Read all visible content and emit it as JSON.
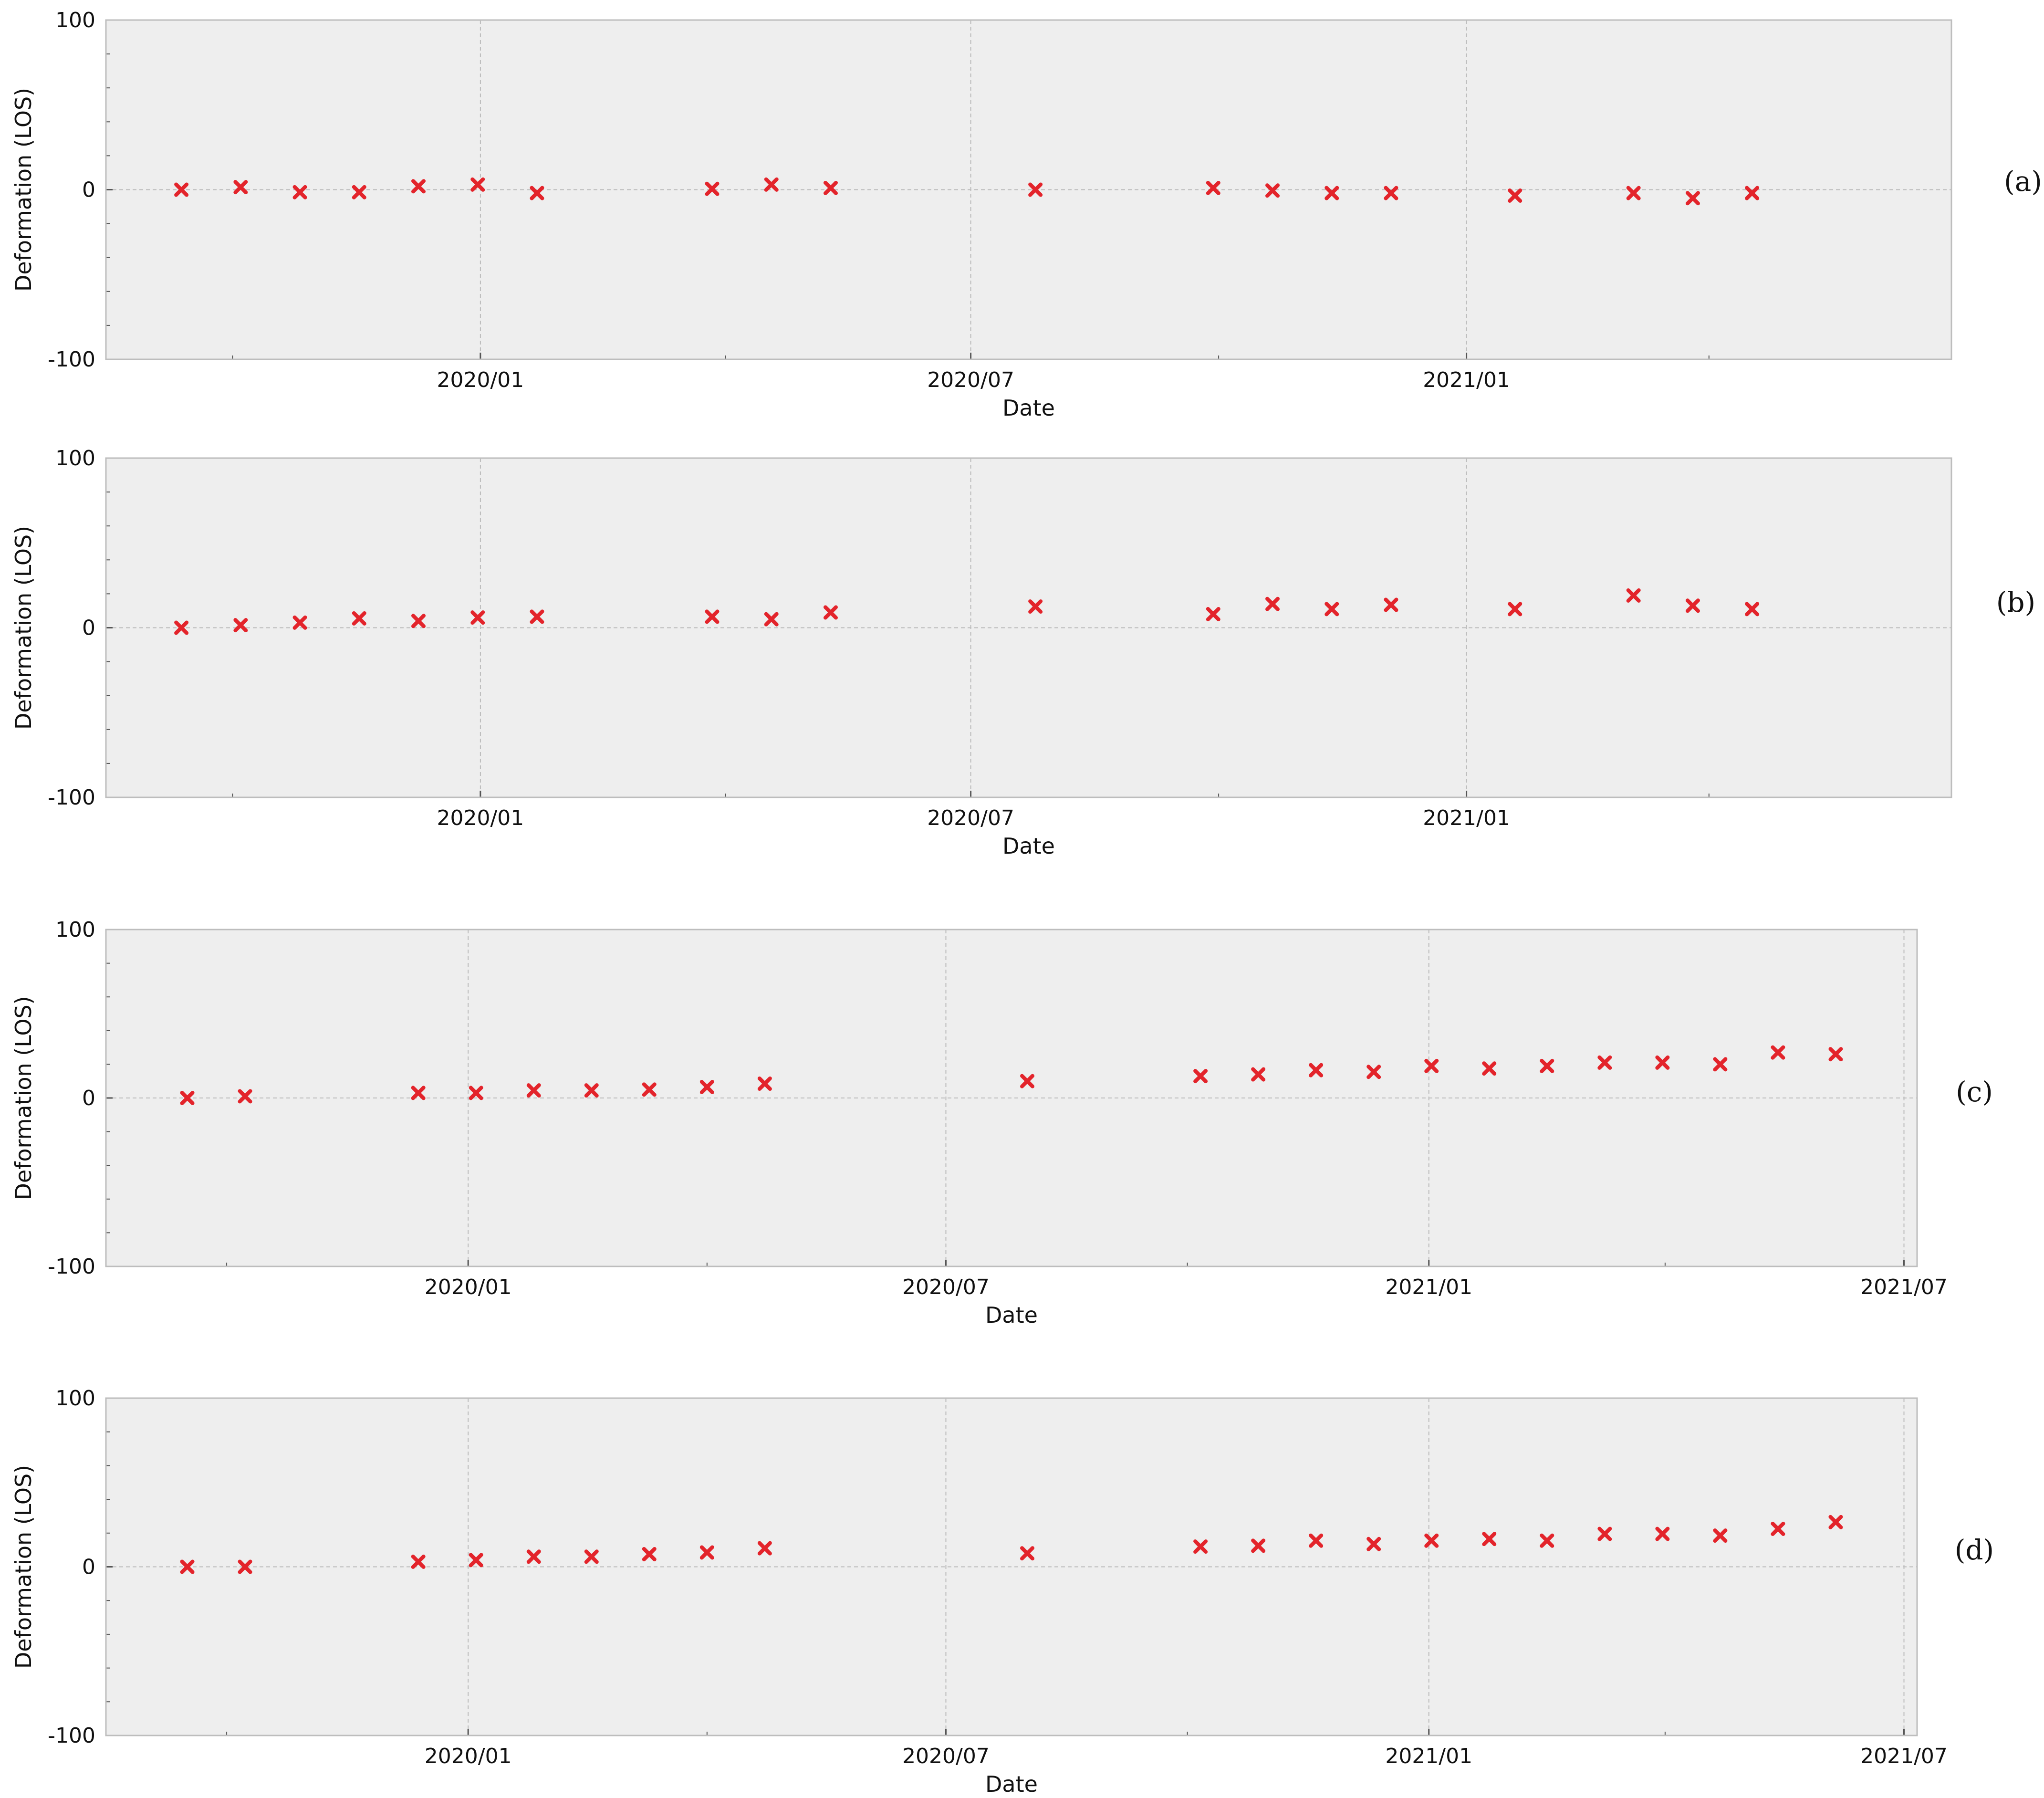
{
  "colors": {
    "plot_bg": "#eeeeee",
    "frame": "#bdbdbd",
    "grid": "#bbbbbb",
    "marker": "#e3242b"
  },
  "chart_data": [
    {
      "type": "scatter",
      "panel_label": "(a)",
      "xlabel": "Date",
      "ylabel": "Deformation (LOS)",
      "ylim": [
        -100,
        100
      ],
      "yticks": [
        "-100",
        "0",
        "100"
      ],
      "xlim": [
        "2019-08-15",
        "2021-06-30"
      ],
      "xticks": [
        {
          "date": "2020-01-01",
          "label": "2020/01"
        },
        {
          "date": "2020-07-01",
          "label": "2020/07"
        },
        {
          "date": "2021-01-01",
          "label": "2021/01"
        }
      ],
      "grid": true,
      "series": [
        {
          "marker": "x",
          "points": [
            {
              "x": "2019-09-12",
              "y": 0
            },
            {
              "x": "2019-10-04",
              "y": 1.5
            },
            {
              "x": "2019-10-26",
              "y": -1.5
            },
            {
              "x": "2019-11-17",
              "y": -1.5
            },
            {
              "x": "2019-12-09",
              "y": 2
            },
            {
              "x": "2019-12-31",
              "y": 3
            },
            {
              "x": "2020-01-22",
              "y": -2
            },
            {
              "x": "2020-03-27",
              "y": 0.5
            },
            {
              "x": "2020-04-18",
              "y": 3
            },
            {
              "x": "2020-05-10",
              "y": 1
            },
            {
              "x": "2020-07-25",
              "y": 0
            },
            {
              "x": "2020-09-29",
              "y": 1
            },
            {
              "x": "2020-10-21",
              "y": -0.5
            },
            {
              "x": "2020-11-12",
              "y": -2
            },
            {
              "x": "2020-12-04",
              "y": -2
            },
            {
              "x": "2021-01-19",
              "y": -3.5
            },
            {
              "x": "2021-03-04",
              "y": -2
            },
            {
              "x": "2021-03-26",
              "y": -5
            },
            {
              "x": "2021-04-17",
              "y": -2
            }
          ]
        }
      ]
    },
    {
      "type": "scatter",
      "panel_label": "(b)",
      "xlabel": "Date",
      "ylabel": "Deformation (LOS)",
      "ylim": [
        -100,
        100
      ],
      "yticks": [
        "-100",
        "0",
        "100"
      ],
      "xlim": [
        "2019-08-15",
        "2021-06-30"
      ],
      "xticks": [
        {
          "date": "2020-01-01",
          "label": "2020/01"
        },
        {
          "date": "2020-07-01",
          "label": "2020/07"
        },
        {
          "date": "2021-01-01",
          "label": "2021/01"
        }
      ],
      "grid": true,
      "series": [
        {
          "marker": "x",
          "points": [
            {
              "x": "2019-09-12",
              "y": 0
            },
            {
              "x": "2019-10-04",
              "y": 1.5
            },
            {
              "x": "2019-10-26",
              "y": 3
            },
            {
              "x": "2019-11-17",
              "y": 5.5
            },
            {
              "x": "2019-12-09",
              "y": 4
            },
            {
              "x": "2019-12-31",
              "y": 6
            },
            {
              "x": "2020-01-22",
              "y": 6.5
            },
            {
              "x": "2020-03-27",
              "y": 6.5
            },
            {
              "x": "2020-04-18",
              "y": 5
            },
            {
              "x": "2020-05-10",
              "y": 9
            },
            {
              "x": "2020-07-25",
              "y": 12.5
            },
            {
              "x": "2020-09-29",
              "y": 8
            },
            {
              "x": "2020-10-21",
              "y": 14
            },
            {
              "x": "2020-11-12",
              "y": 11
            },
            {
              "x": "2020-12-04",
              "y": 13.5
            },
            {
              "x": "2021-01-19",
              "y": 11
            },
            {
              "x": "2021-03-04",
              "y": 19
            },
            {
              "x": "2021-03-26",
              "y": 13
            },
            {
              "x": "2021-04-17",
              "y": 11
            }
          ]
        }
      ]
    },
    {
      "type": "scatter",
      "panel_label": "(c)",
      "xlabel": "Date",
      "ylabel": "Deformation (LOS)",
      "ylim": [
        -100,
        100
      ],
      "yticks": [
        "-100",
        "0",
        "100"
      ],
      "xlim": [
        "2019-08-16",
        "2021-07-06"
      ],
      "xticks": [
        {
          "date": "2020-01-01",
          "label": "2020/01"
        },
        {
          "date": "2020-07-01",
          "label": "2020/07"
        },
        {
          "date": "2021-01-01",
          "label": "2021/01"
        },
        {
          "date": "2021-07-01",
          "label": "2021/07"
        }
      ],
      "grid": true,
      "series": [
        {
          "marker": "x",
          "points": [
            {
              "x": "2019-09-16",
              "y": 0
            },
            {
              "x": "2019-10-08",
              "y": 1
            },
            {
              "x": "2019-12-13",
              "y": 3
            },
            {
              "x": "2020-01-04",
              "y": 3
            },
            {
              "x": "2020-01-26",
              "y": 4.5
            },
            {
              "x": "2020-02-17",
              "y": 4.5
            },
            {
              "x": "2020-03-10",
              "y": 5
            },
            {
              "x": "2020-04-01",
              "y": 6.5
            },
            {
              "x": "2020-04-23",
              "y": 8.5
            },
            {
              "x": "2020-08-01",
              "y": 10
            },
            {
              "x": "2020-10-06",
              "y": 13
            },
            {
              "x": "2020-10-28",
              "y": 14
            },
            {
              "x": "2020-11-19",
              "y": 16.5
            },
            {
              "x": "2020-12-11",
              "y": 15.5
            },
            {
              "x": "2021-01-02",
              "y": 19
            },
            {
              "x": "2021-01-24",
              "y": 17.5
            },
            {
              "x": "2021-02-15",
              "y": 19
            },
            {
              "x": "2021-03-09",
              "y": 21
            },
            {
              "x": "2021-03-31",
              "y": 21
            },
            {
              "x": "2021-04-22",
              "y": 20
            },
            {
              "x": "2021-05-14",
              "y": 27
            },
            {
              "x": "2021-06-05",
              "y": 26
            }
          ]
        }
      ]
    },
    {
      "type": "scatter",
      "panel_label": "(d)",
      "xlabel": "Date",
      "ylabel": "Deformation (LOS)",
      "ylim": [
        -100,
        100
      ],
      "yticks": [
        "-100",
        "0",
        "100"
      ],
      "xlim": [
        "2019-08-16",
        "2021-07-06"
      ],
      "xticks": [
        {
          "date": "2020-01-01",
          "label": "2020/01"
        },
        {
          "date": "2020-07-01",
          "label": "2020/07"
        },
        {
          "date": "2021-01-01",
          "label": "2021/01"
        },
        {
          "date": "2021-07-01",
          "label": "2021/07"
        }
      ],
      "grid": true,
      "series": [
        {
          "marker": "x",
          "points": [
            {
              "x": "2019-09-16",
              "y": 0
            },
            {
              "x": "2019-10-08",
              "y": 0
            },
            {
              "x": "2019-12-13",
              "y": 3
            },
            {
              "x": "2020-01-04",
              "y": 4
            },
            {
              "x": "2020-01-26",
              "y": 6
            },
            {
              "x": "2020-02-17",
              "y": 6
            },
            {
              "x": "2020-03-10",
              "y": 7.5
            },
            {
              "x": "2020-04-01",
              "y": 8.5
            },
            {
              "x": "2020-04-23",
              "y": 11
            },
            {
              "x": "2020-08-01",
              "y": 8
            },
            {
              "x": "2020-10-06",
              "y": 12
            },
            {
              "x": "2020-10-28",
              "y": 12.5
            },
            {
              "x": "2020-11-19",
              "y": 15.5
            },
            {
              "x": "2020-12-11",
              "y": 13.5
            },
            {
              "x": "2021-01-02",
              "y": 15.5
            },
            {
              "x": "2021-01-24",
              "y": 16.5
            },
            {
              "x": "2021-02-15",
              "y": 15.5
            },
            {
              "x": "2021-03-09",
              "y": 19.5
            },
            {
              "x": "2021-03-31",
              "y": 19.5
            },
            {
              "x": "2021-04-22",
              "y": 18.5
            },
            {
              "x": "2021-05-14",
              "y": 22.5
            },
            {
              "x": "2021-06-05",
              "y": 26.5
            }
          ]
        }
      ]
    }
  ]
}
